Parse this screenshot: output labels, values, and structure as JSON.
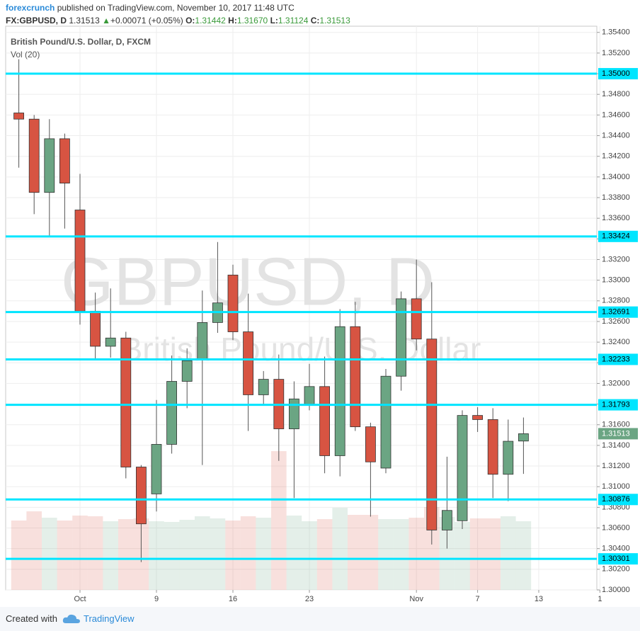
{
  "header": {
    "author": "forexcrunch",
    "published": "published on TradingView.com, November 10, 2017 11:48 UTC",
    "symbol": "FX:GBPUSD, D",
    "price": "1.31513",
    "arrow": "▲",
    "change": "+0.00071 (+0.05%)",
    "o_label": "O:",
    "o": "1.31442",
    "h_label": "H:",
    "h": "1.31670",
    "l_label": "L:",
    "l": "1.31124",
    "c_label": "C:",
    "c": "1.31513"
  },
  "footer": {
    "created": "Created with",
    "brand": "TradingView"
  },
  "chart_data": {
    "type": "candlestick",
    "title": "British Pound/U.S. Dollar, D, FXCM",
    "volume_label": "Vol (20)",
    "watermark": [
      "GBPUSD, D",
      "British Pound/U.S. Dollar"
    ],
    "up_color": "#6ba583",
    "down_color": "#d75442",
    "level_color": "#00e5ff",
    "grid": true,
    "categories": [
      null,
      null,
      null,
      null,
      "Oct",
      null,
      null,
      null,
      null,
      "9",
      null,
      null,
      null,
      null,
      "16",
      null,
      null,
      null,
      null,
      "23",
      null,
      null,
      null,
      null,
      null,
      null,
      "Nov",
      null,
      null,
      null,
      "7",
      null,
      null,
      null,
      "13",
      null,
      null,
      null,
      "1"
    ],
    "series": [
      {
        "name": "open",
        "values": [
          1.3462,
          1.3456,
          1.3385,
          1.3437,
          1.3368,
          1.327,
          1.3236,
          1.3244,
          1.3119,
          1.3093,
          1.3141,
          1.3202,
          1.3224,
          1.3259,
          1.3305,
          1.325,
          1.3189,
          1.3204,
          1.3156,
          1.318,
          1.3197,
          1.313,
          1.3255,
          1.3158,
          1.3118,
          1.3207,
          1.3282,
          1.3243,
          1.3058,
          1.3067,
          1.3169,
          1.3165,
          1.3112,
          1.31442,
          null,
          null,
          null,
          null,
          null
        ]
      },
      {
        "name": "high",
        "values": [
          1.3514,
          1.346,
          1.3456,
          1.3442,
          1.3403,
          1.3288,
          1.3292,
          1.325,
          1.3121,
          1.3184,
          1.3227,
          1.3234,
          1.329,
          1.3337,
          1.3315,
          1.3287,
          1.3212,
          1.3228,
          1.3202,
          1.3219,
          1.3226,
          1.3272,
          1.3279,
          1.3162,
          1.3214,
          1.3289,
          1.332,
          1.3298,
          1.3129,
          1.3174,
          1.3177,
          1.3176,
          1.3165,
          1.3167,
          null,
          null,
          null,
          null,
          null
        ]
      },
      {
        "name": "low",
        "values": [
          1.3409,
          1.3364,
          1.3343,
          1.335,
          1.3257,
          1.3224,
          1.3225,
          1.3108,
          1.3027,
          1.3076,
          1.3132,
          1.3176,
          1.3121,
          1.3249,
          1.3242,
          1.3154,
          1.3179,
          1.3125,
          1.3089,
          1.3174,
          1.3113,
          1.311,
          1.3154,
          1.3071,
          1.3113,
          1.3193,
          1.3232,
          1.3044,
          1.304,
          1.3059,
          1.3153,
          1.3089,
          1.3086,
          1.31124,
          null,
          null,
          null,
          null,
          null
        ]
      },
      {
        "name": "close",
        "values": [
          1.3456,
          1.3385,
          1.3437,
          1.3394,
          1.327,
          1.3236,
          1.3244,
          1.3119,
          1.3064,
          1.3141,
          1.3202,
          1.3222,
          1.3259,
          1.3278,
          1.325,
          1.3189,
          1.3204,
          1.3156,
          1.3185,
          1.3197,
          1.313,
          1.3255,
          1.3158,
          1.3124,
          1.3207,
          1.3282,
          1.3243,
          1.3058,
          1.3077,
          1.3169,
          1.3165,
          1.3112,
          1.3144,
          1.31513,
          null,
          null,
          null,
          null,
          null
        ]
      },
      {
        "name": "volume",
        "values": [
          98,
          111,
          102,
          98,
          105,
          104,
          97,
          100,
          101,
          97,
          96,
          99,
          104,
          101,
          98,
          104,
          102,
          196,
          105,
          97,
          100,
          116,
          106,
          106,
          100,
          100,
          102,
          117,
          103,
          96,
          101,
          101,
          104,
          97,
          null,
          null,
          null,
          null,
          null
        ]
      }
    ],
    "ylim": [
      1.3,
      1.3546
    ],
    "yticks": [
      {
        "value": 1.3,
        "label": "1.30000"
      },
      {
        "value": 1.302,
        "label": "1.30200"
      },
      {
        "value": 1.304,
        "label": "1.30400"
      },
      {
        "value": 1.306,
        "label": "1.30600"
      },
      {
        "value": 1.308,
        "label": "1.30800"
      },
      {
        "value": 1.31,
        "label": "1.31000"
      },
      {
        "value": 1.312,
        "label": "1.31200"
      },
      {
        "value": 1.314,
        "label": "1.31400"
      },
      {
        "value": 1.316,
        "label": "1.31600"
      },
      {
        "value": 1.318,
        "label": "1.31800"
      },
      {
        "value": 1.32,
        "label": "1.32000"
      },
      {
        "value": 1.322,
        "label": "1.32200"
      },
      {
        "value": 1.324,
        "label": "1.32400"
      },
      {
        "value": 1.326,
        "label": "1.32600"
      },
      {
        "value": 1.328,
        "label": "1.32800"
      },
      {
        "value": 1.33,
        "label": "1.33000"
      },
      {
        "value": 1.332,
        "label": "1.33200"
      },
      {
        "value": 1.334,
        "label": "1.33400"
      },
      {
        "value": 1.336,
        "label": "1.33600"
      },
      {
        "value": 1.338,
        "label": "1.33800"
      },
      {
        "value": 1.34,
        "label": "1.34000"
      },
      {
        "value": 1.342,
        "label": "1.34200"
      },
      {
        "value": 1.344,
        "label": "1.34400"
      },
      {
        "value": 1.346,
        "label": "1.34600"
      },
      {
        "value": 1.348,
        "label": "1.34800"
      },
      {
        "value": 1.35,
        "label": "1.35000"
      },
      {
        "value": 1.352,
        "label": "1.35200"
      },
      {
        "value": 1.354,
        "label": "1.35400"
      }
    ],
    "levels": [
      {
        "value": 1.35,
        "label": "1.35000"
      },
      {
        "value": 1.33424,
        "label": "1.33424"
      },
      {
        "value": 1.32691,
        "label": "1.32691"
      },
      {
        "value": 1.32233,
        "label": "1.32233"
      },
      {
        "value": 1.31793,
        "label": "1.31793"
      },
      {
        "value": 1.30876,
        "label": "1.30876"
      },
      {
        "value": 1.30301,
        "label": "1.30301"
      }
    ],
    "last_price": {
      "value": 1.31513,
      "label": "1.31513"
    }
  }
}
